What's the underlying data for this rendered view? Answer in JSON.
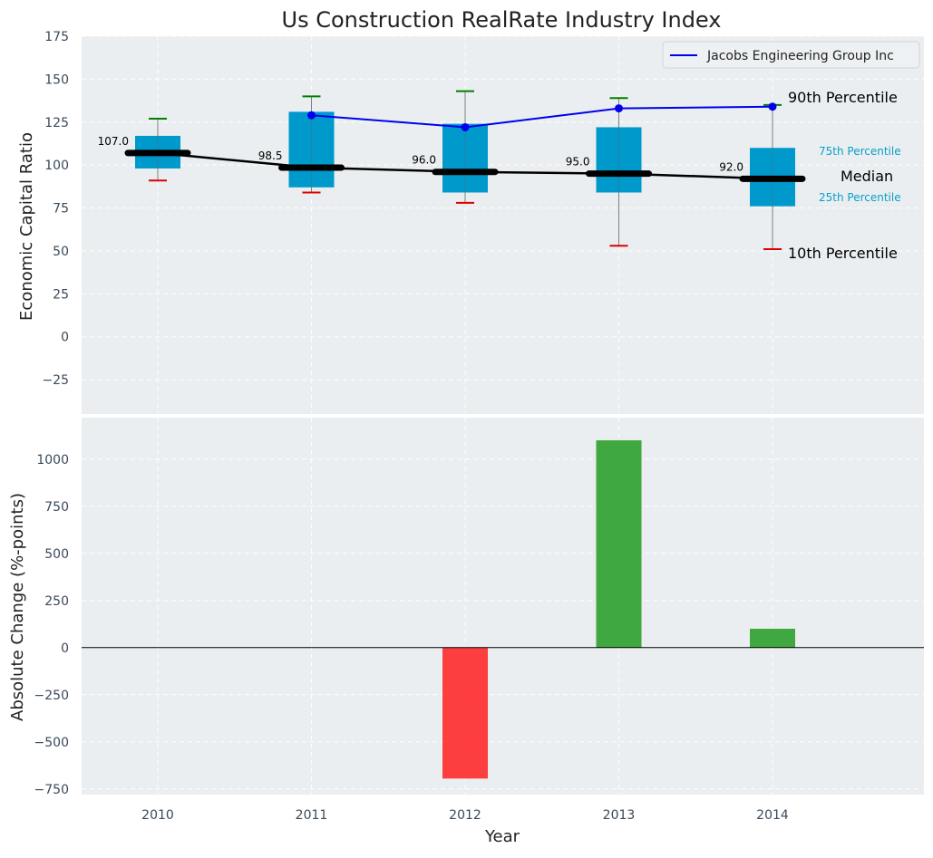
{
  "chart_data": [
    {
      "type": "box",
      "title": "Us Construction RealRate Industry Index",
      "xlabel": "",
      "ylabel": "Economic Capital Ratio",
      "ylim": [
        -45,
        175
      ],
      "yticks": [
        -25,
        0,
        25,
        50,
        75,
        100,
        125,
        150,
        175
      ],
      "ytick_labels": [
        "−25",
        "0",
        "25",
        "50",
        "75",
        "100",
        "125",
        "150",
        "175"
      ],
      "categories": [
        "2010",
        "2011",
        "2012",
        "2013",
        "2014"
      ],
      "p10": [
        91,
        84,
        78,
        53,
        51
      ],
      "p25": [
        98,
        87,
        84,
        84,
        76
      ],
      "median": [
        107.0,
        98.5,
        96.0,
        95.0,
        92.0
      ],
      "median_labels": [
        "107.0",
        "98.5",
        "96.0",
        "95.0",
        "92.0"
      ],
      "p75": [
        117,
        131,
        124,
        122,
        110
      ],
      "p90": [
        127,
        140,
        143,
        139,
        135
      ],
      "company_series": {
        "name": "Jacobs Engineering Group Inc",
        "years": [
          "2011",
          "2012",
          "2013",
          "2014"
        ],
        "values": [
          129,
          122,
          133,
          134
        ]
      },
      "legend": {
        "entries": [
          "Jacobs Engineering Group Inc"
        ],
        "location": "upper right"
      },
      "annotations": {
        "p90": "90th Percentile",
        "p75": "75th Percentile",
        "median": "Median",
        "p25": "25th Percentile",
        "p10": "10th Percentile"
      },
      "colors": {
        "box": "#0099cc",
        "median": "#000000",
        "company": "#0000ee",
        "whisker_top": "#008000",
        "whisker_bottom": "#dd0000",
        "whisker_line": "#808080",
        "annotation_small": "#0aa0c8"
      }
    },
    {
      "type": "bar",
      "xlabel": "Year",
      "ylabel": "Absolute Change (%-points)",
      "ylim": [
        -780,
        1220
      ],
      "yticks": [
        -750,
        -500,
        -250,
        0,
        250,
        500,
        750,
        1000
      ],
      "ytick_labels": [
        "−750",
        "−500",
        "−250",
        "0",
        "250",
        "500",
        "750",
        "1000"
      ],
      "categories": [
        "2010",
        "2011",
        "2012",
        "2013",
        "2014"
      ],
      "values": [
        0,
        0,
        -695,
        1100,
        100
      ],
      "colors": {
        "positive": "#2ca02c",
        "negative": "#ff2a2a"
      }
    }
  ]
}
